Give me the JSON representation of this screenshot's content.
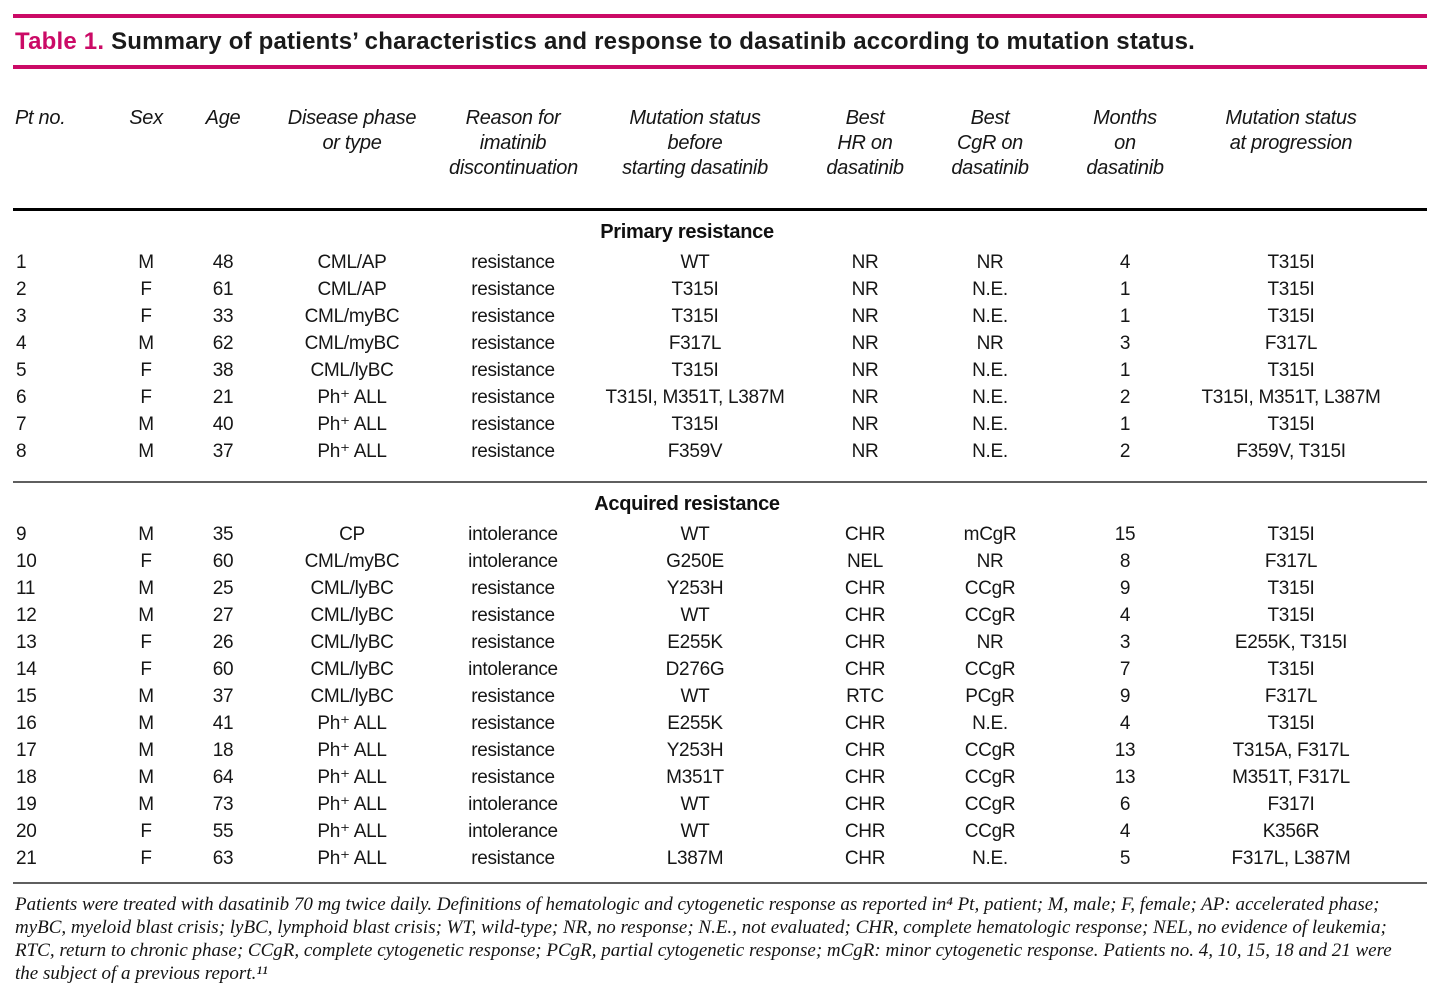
{
  "title": {
    "label": "Table 1.",
    "text": "Summary of patients’ characteristics and response to dasatinib according to mutation status."
  },
  "colors": {
    "accent": "#cb0a66",
    "text": "#1c1c1c",
    "header_rule": "#000000",
    "divider_rule": "#5f5f5f"
  },
  "table": {
    "columns": [
      {
        "key": "pt-no",
        "label": "Pt no."
      },
      {
        "key": "sex",
        "label": "Sex"
      },
      {
        "key": "age",
        "label": "Age"
      },
      {
        "key": "disease-phase",
        "label": "Disease phase\nor type"
      },
      {
        "key": "reason",
        "label": "Reason for\nimatinib\ndiscontinuation"
      },
      {
        "key": "mutation-before",
        "label": "Mutation status\nbefore\nstarting dasatinib"
      },
      {
        "key": "best-hr",
        "label": "Best\nHR on\ndasatinib"
      },
      {
        "key": "best-cgr",
        "label": "Best\nCgR on\ndasatinib"
      },
      {
        "key": "months",
        "label": "Months\non\ndasatinib"
      },
      {
        "key": "mutation-progression",
        "label": "Mutation status\nat progression"
      }
    ],
    "sections": [
      {
        "header": "Primary resistance",
        "rows": [
          [
            "1",
            "M",
            "48",
            "CML/AP",
            "resistance",
            "WT",
            "NR",
            "NR",
            "4",
            "T315I"
          ],
          [
            "2",
            "F",
            "61",
            "CML/AP",
            "resistance",
            "T315I",
            "NR",
            "N.E.",
            "1",
            "T315I"
          ],
          [
            "3",
            "F",
            "33",
            "CML/myBC",
            "resistance",
            "T315I",
            "NR",
            "N.E.",
            "1",
            "T315I"
          ],
          [
            "4",
            "M",
            "62",
            "CML/myBC",
            "resistance",
            "F317L",
            "NR",
            "NR",
            "3",
            "F317L"
          ],
          [
            "5",
            "F",
            "38",
            "CML/lyBC",
            "resistance",
            "T315I",
            "NR",
            "N.E.",
            "1",
            "T315I"
          ],
          [
            "6",
            "F",
            "21",
            "Ph⁺ ALL",
            "resistance",
            "T315I, M351T, L387M",
            "NR",
            "N.E.",
            "2",
            "T315I, M351T, L387M"
          ],
          [
            "7",
            "M",
            "40",
            "Ph⁺ ALL",
            "resistance",
            "T315I",
            "NR",
            "N.E.",
            "1",
            "T315I"
          ],
          [
            "8",
            "M",
            "37",
            "Ph⁺ ALL",
            "resistance",
            "F359V",
            "NR",
            "N.E.",
            "2",
            "F359V, T315I"
          ]
        ]
      },
      {
        "header": "Acquired resistance",
        "rows": [
          [
            "9",
            "M",
            "35",
            "CP",
            "intolerance",
            "WT",
            "CHR",
            "mCgR",
            "15",
            "T315I"
          ],
          [
            "10",
            "F",
            "60",
            "CML/myBC",
            "intolerance",
            "G250E",
            "NEL",
            "NR",
            "8",
            "F317L"
          ],
          [
            "11",
            "M",
            "25",
            "CML/lyBC",
            "resistance",
            "Y253H",
            "CHR",
            "CCgR",
            "9",
            "T315I"
          ],
          [
            "12",
            "M",
            "27",
            "CML/lyBC",
            "resistance",
            "WT",
            "CHR",
            "CCgR",
            "4",
            "T315I"
          ],
          [
            "13",
            "F",
            "26",
            "CML/lyBC",
            "resistance",
            "E255K",
            "CHR",
            "NR",
            "3",
            "E255K, T315I"
          ],
          [
            "14",
            "F",
            "60",
            "CML/lyBC",
            "intolerance",
            "D276G",
            "CHR",
            "CCgR",
            "7",
            "T315I"
          ],
          [
            "15",
            "M",
            "37",
            "CML/lyBC",
            "resistance",
            "WT",
            "RTC",
            "PCgR",
            "9",
            "F317L"
          ],
          [
            "16",
            "M",
            "41",
            "Ph⁺ ALL",
            "resistance",
            "E255K",
            "CHR",
            "N.E.",
            "4",
            "T315I"
          ],
          [
            "17",
            "M",
            "18",
            "Ph⁺ ALL",
            "resistance",
            "Y253H",
            "CHR",
            "CCgR",
            "13",
            "T315A, F317L"
          ],
          [
            "18",
            "M",
            "64",
            "Ph⁺ ALL",
            "resistance",
            "M351T",
            "CHR",
            "CCgR",
            "13",
            "M351T, F317L"
          ],
          [
            "19",
            "M",
            "73",
            "Ph⁺ ALL",
            "intolerance",
            "WT",
            "CHR",
            "CCgR",
            "6",
            "F317I"
          ],
          [
            "20",
            "F",
            "55",
            "Ph⁺ ALL",
            "intolerance",
            "WT",
            "CHR",
            "CCgR",
            "4",
            "K356R"
          ],
          [
            "21",
            "F",
            "63",
            "Ph⁺ ALL",
            "resistance",
            "L387M",
            "CHR",
            "N.E.",
            "5",
            "F317L, L387M"
          ]
        ]
      }
    ]
  },
  "footnote": {
    "text": "Patients were treated with dasatinib 70 mg twice daily. Definitions of hematologic and cytogenetic response as reported in⁴ Pt, patient; M, male; F, female; AP: accelerated phase; myBC, myeloid blast crisis; lyBC, lymphoid blast crisis; WT, wild-type; NR, no response; N.E., not evaluated; CHR, complete hematologic response; NEL, no evidence of leukemia; RTC, return to chronic phase; CCgR, complete cytogenetic response; PCgR, partial cytogenetic response; mCgR: minor cytogenetic response. Patients no. 4, 10, 15, 18 and 21 were the subject of a previous report.¹¹"
  }
}
